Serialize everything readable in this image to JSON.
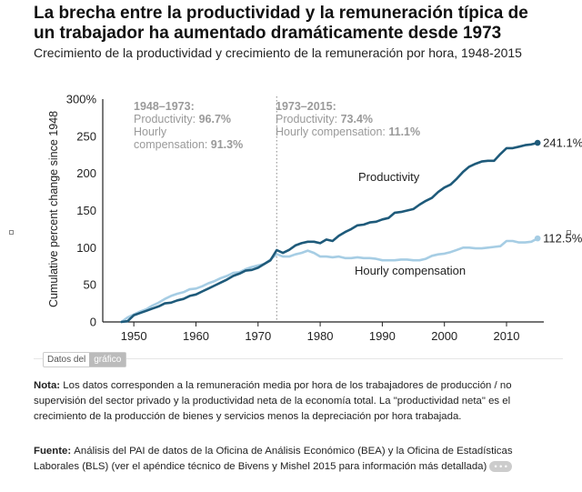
{
  "title": "La brecha entre la productividad y la remuneración típica de un trabajador ha aumentado dramáticamente desde 1973",
  "subtitle": "Crecimiento de la productividad y crecimiento de la remuneración por hora, 1948-2015",
  "annotations": {
    "left": {
      "head": "1948–1973:",
      "prod_label": "Productivity: ",
      "prod_value": "96.7%",
      "comp_label_1": "Hourly",
      "comp_label_2": "compensation: ",
      "comp_value": "91.3%"
    },
    "right": {
      "head": "1973–2015:",
      "prod_label": "Productivity: ",
      "prod_value": "73.4%",
      "comp_label": "Hourly compensation: ",
      "comp_value": "11.1%"
    }
  },
  "data_button": {
    "label": "Datos del",
    "highlight": "gráfico"
  },
  "note": {
    "label": "Nota: ",
    "text": "Los datos corresponden a la remuneración media por hora de los trabajadores de producción / no supervisión del sector privado y la productividad neta de la economía total. La \"productividad neta\" es el crecimiento de la producción de bienes y servicios menos la depreciación por hora trabajada."
  },
  "source": {
    "label": "Fuente: ",
    "text": "Análisis del PAI de datos de la Oficina de Análisis Económico (BEA) y la Oficina de Estadísticas Laborales (BLS) (ver el apéndice técnico de Bivens y Mishel 2015 para información más detallada)",
    "more": "• • •"
  },
  "colors": {
    "productivity": "#1e5a7a",
    "compensation": "#a6cde4",
    "axis": "#222222",
    "annotation": "#9a9a9a"
  },
  "chart_data": {
    "type": "line",
    "ylabel": "Cumulative percent change since 1948",
    "xlabel": "",
    "xlim": [
      1945,
      2016
    ],
    "ylim": [
      0,
      300
    ],
    "x_ticks": [
      "1950",
      "1960",
      "1970",
      "1980",
      "1990",
      "2000",
      "2010"
    ],
    "y_ticks": [
      "0",
      "50",
      "100",
      "150",
      "200",
      "250",
      "300%"
    ],
    "grid": false,
    "divider_year": 1973,
    "series": [
      {
        "name": "Productivity",
        "end_label": "241.1%",
        "x": [
          1948,
          1949,
          1950,
          1951,
          1952,
          1953,
          1954,
          1955,
          1956,
          1957,
          1958,
          1959,
          1960,
          1961,
          1962,
          1963,
          1964,
          1965,
          1966,
          1967,
          1968,
          1969,
          1970,
          1971,
          1972,
          1973,
          1974,
          1975,
          1976,
          1977,
          1978,
          1979,
          1980,
          1981,
          1982,
          1983,
          1984,
          1985,
          1986,
          1987,
          1988,
          1989,
          1990,
          1991,
          1992,
          1993,
          1994,
          1995,
          1996,
          1997,
          1998,
          1999,
          2000,
          2001,
          2002,
          2003,
          2004,
          2005,
          2006,
          2007,
          2008,
          2009,
          2010,
          2011,
          2012,
          2013,
          2014,
          2015
        ],
        "values": [
          0,
          1,
          9,
          12,
          15,
          18,
          21,
          25,
          26,
          29,
          31,
          35,
          37,
          41,
          45,
          49,
          53,
          57,
          62,
          65,
          69,
          70,
          73,
          78,
          83,
          96.7,
          93,
          97,
          103,
          106,
          108,
          108,
          106,
          111,
          109,
          116,
          121,
          125,
          130,
          131,
          134,
          135,
          138,
          140,
          147,
          148,
          150,
          152,
          158,
          163,
          167,
          175,
          181,
          185,
          193,
          202,
          209,
          213,
          216,
          217,
          217,
          226,
          234,
          234,
          236,
          238,
          239,
          241.1
        ]
      },
      {
        "name": "Hourly compensation",
        "end_label": "112.5%",
        "x": [
          1948,
          1949,
          1950,
          1951,
          1952,
          1953,
          1954,
          1955,
          1956,
          1957,
          1958,
          1959,
          1960,
          1961,
          1962,
          1963,
          1964,
          1965,
          1966,
          1967,
          1968,
          1969,
          1970,
          1971,
          1972,
          1973,
          1974,
          1975,
          1976,
          1977,
          1978,
          1979,
          1980,
          1981,
          1982,
          1983,
          1984,
          1985,
          1986,
          1987,
          1988,
          1989,
          1990,
          1991,
          1992,
          1993,
          1994,
          1995,
          1996,
          1997,
          1998,
          1999,
          2000,
          2001,
          2002,
          2003,
          2004,
          2005,
          2006,
          2007,
          2008,
          2009,
          2010,
          2011,
          2012,
          2013,
          2014,
          2015
        ],
        "values": [
          0,
          6,
          10,
          14,
          17,
          22,
          26,
          31,
          35,
          38,
          40,
          44,
          45,
          48,
          52,
          55,
          59,
          62,
          66,
          67,
          71,
          74,
          76,
          78,
          84,
          91.3,
          88,
          88,
          91,
          93,
          96,
          93,
          88,
          88,
          87,
          88,
          86,
          86,
          87,
          86,
          86,
          85,
          83,
          83,
          83,
          84,
          84,
          83,
          83,
          85,
          89,
          91,
          92,
          94,
          97,
          100,
          100,
          99,
          99,
          100,
          101,
          102,
          109,
          109,
          107,
          107,
          108,
          112.5
        ]
      }
    ]
  }
}
